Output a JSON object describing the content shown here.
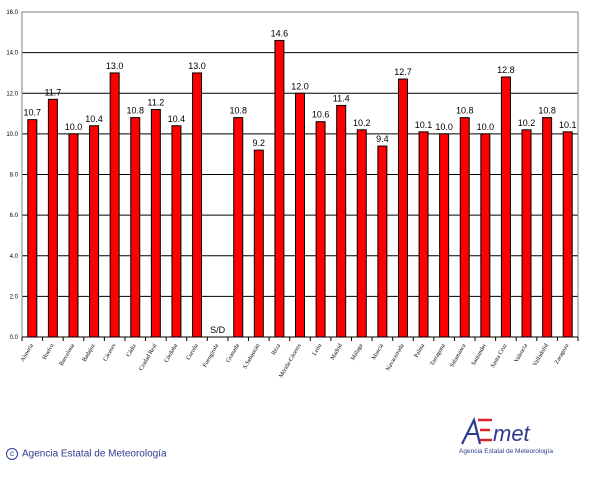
{
  "chart_data": {
    "type": "bar",
    "categories": [
      "Almería",
      "Huelva",
      "Barcelona",
      "Badajoz",
      "Cáceres",
      "Cádiz",
      "Ciudad Real",
      "Córdoba",
      "Coruña",
      "Fuengirola",
      "Granada",
      "S.Sebastián",
      "Ibiza",
      "Mérida-Cáceres",
      "León",
      "Madrid",
      "Málaga",
      "Murcia",
      "Navacerrada",
      "Palma",
      "Tarragona",
      "Salamanca",
      "Santander",
      "Santa Cruz",
      "Valencia",
      "Valladolid",
      "Zaragoza"
    ],
    "values": [
      10.7,
      11.7,
      10.0,
      10.4,
      13.0,
      10.8,
      11.2,
      10.4,
      13.0,
      null,
      10.8,
      9.2,
      14.6,
      12.0,
      10.6,
      11.4,
      10.2,
      9.4,
      12.7,
      10.1,
      10.0,
      10.8,
      10.0,
      12.8,
      10.2,
      10.8,
      10.1
    ],
    "value_labels": [
      "10.7",
      "11.7",
      "10.0",
      "10.4",
      "13.0",
      "10.8",
      "11.2",
      "10.4",
      "13.0",
      "S/D",
      "10.8",
      "9.2",
      "14.6",
      "12.0",
      "10.6",
      "11.4",
      "10.2",
      "9.4",
      "12.7",
      "10.1",
      "10.0",
      "10.8",
      "10.0",
      "12.8",
      "10.2",
      "10.8",
      "10.1"
    ],
    "y_ticks": [
      "0.0",
      "2.0",
      "4.0",
      "6.0",
      "8.0",
      "10.0",
      "12.0",
      "14.0",
      "16.0"
    ],
    "ylim": [
      0,
      16
    ],
    "grid": true,
    "title": "",
    "xlabel": "",
    "ylabel": "",
    "bar_color": "#ff0000"
  },
  "footer": {
    "copyright_symbol": "c",
    "copyright_text": "Agencia Estatal de Meteorología"
  },
  "logo": {
    "mark_text": "AEmet",
    "sub_text": "Agencia Estatal de Meteorología"
  }
}
